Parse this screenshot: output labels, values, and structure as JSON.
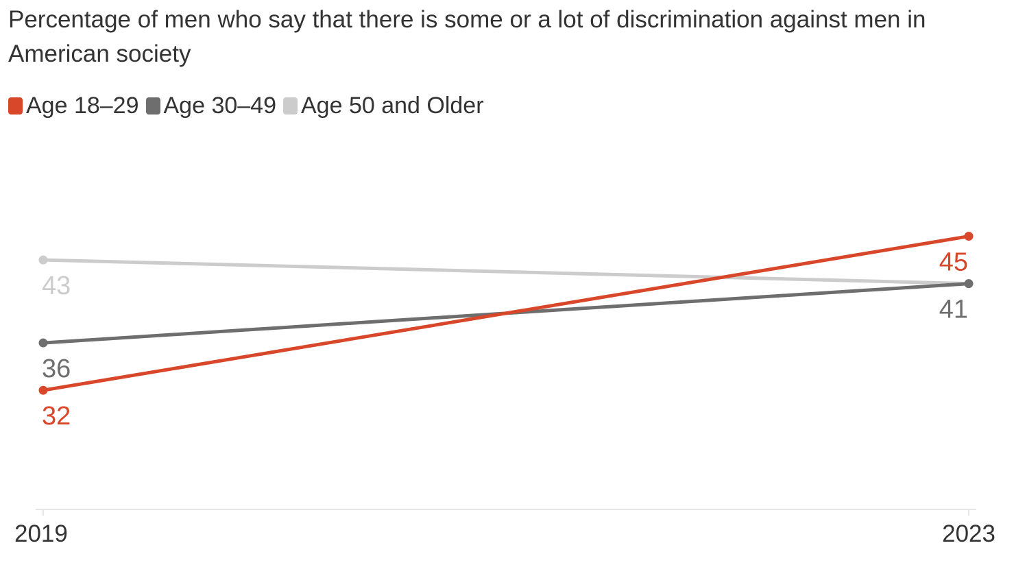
{
  "chart_data": {
    "type": "line",
    "title": "Percentage of men who say that there is some or a lot of discrimination against men in American society",
    "x": [
      "2019",
      "2023"
    ],
    "series": [
      {
        "name": "Age 18–29",
        "values": [
          32,
          45
        ],
        "color": "#d9472b"
      },
      {
        "name": "Age 30–49",
        "values": [
          36,
          41
        ],
        "color": "#6e6e6e"
      },
      {
        "name": "Age 50 and Older",
        "values": [
          43,
          41
        ],
        "color": "#cccccc"
      }
    ],
    "legend_placement": "top-left",
    "grid": false,
    "ylim": [
      22,
      52
    ]
  }
}
